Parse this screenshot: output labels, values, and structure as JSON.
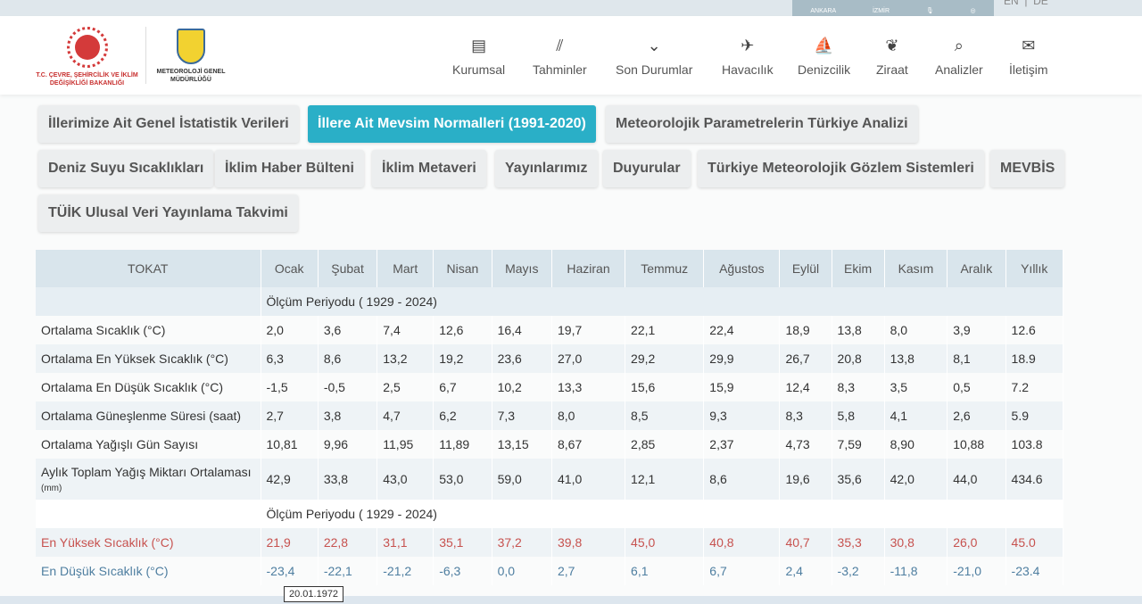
{
  "topbar": {
    "cities": [
      "ANKARA",
      "İZMİR"
    ],
    "languages": [
      "EN",
      "DE"
    ]
  },
  "logos": {
    "ministry": "T.C. ÇEVRE, ŞEHİRCİLİK VE İKLİM DEĞİŞİKLİĞİ BAKANLIĞI",
    "mgm": "METEOROLOJİ GENEL MÜDÜRLÜĞÜ"
  },
  "nav": [
    {
      "label": "Kurumsal",
      "icon": "book-icon"
    },
    {
      "label": "Tahminler",
      "icon": "chart-icon"
    },
    {
      "label": "Son Durumlar",
      "icon": "chevron-circle-icon"
    },
    {
      "label": "Havacılık",
      "icon": "plane-icon"
    },
    {
      "label": "Denizcilik",
      "icon": "sailboat-icon"
    },
    {
      "label": "Ziraat",
      "icon": "wheat-icon"
    },
    {
      "label": "Analizler",
      "icon": "analysis-icon"
    },
    {
      "label": "İletişim",
      "icon": "envelope-icon"
    }
  ],
  "buttons": [
    "İllerimize Ait Genel İstatistik Verileri",
    "İllere Ait Mevsim Normalleri (1991-2020)",
    "Meteorolojik Parametrelerin Türkiye Analizi",
    "Deniz Suyu Sıcaklıkları",
    "İklim Haber Bülteni",
    "İklim Metaveri",
    "Yayınlarımız",
    "Duyurular",
    "Türkiye Meteorolojik Gözlem Sistemleri",
    "MEVBİS",
    "TÜİK Ulusal Veri Yayınlama Takvimi"
  ],
  "active_button": "İllere Ait Mevsim Normalleri (1991-2020)",
  "table": {
    "city": "TOKAT",
    "columns": [
      "Ocak",
      "Şubat",
      "Mart",
      "Nisan",
      "Mayıs",
      "Haziran",
      "Temmuz",
      "Ağustos",
      "Eylül",
      "Ekim",
      "Kasım",
      "Aralık",
      "Yıllık"
    ],
    "period1": "Ölçüm Periyodu ( 1929 - 2024)",
    "rows": [
      {
        "label": "Ortalama Sıcaklık (°C)",
        "values": [
          "2,0",
          "3,6",
          "7,4",
          "12,6",
          "16,4",
          "19,7",
          "22,1",
          "22,4",
          "18,9",
          "13,8",
          "8,0",
          "3,9",
          "12.6"
        ]
      },
      {
        "label": "Ortalama En Yüksek Sıcaklık (°C)",
        "values": [
          "6,3",
          "8,6",
          "13,2",
          "19,2",
          "23,6",
          "27,0",
          "29,2",
          "29,9",
          "26,7",
          "20,8",
          "13,8",
          "8,1",
          "18.9"
        ]
      },
      {
        "label": "Ortalama En Düşük Sıcaklık (°C)",
        "values": [
          "-1,5",
          "-0,5",
          "2,5",
          "6,7",
          "10,2",
          "13,3",
          "15,6",
          "15,9",
          "12,4",
          "8,3",
          "3,5",
          "0,5",
          "7.2"
        ]
      },
      {
        "label": "Ortalama Güneşlenme Süresi (saat)",
        "values": [
          "2,7",
          "3,8",
          "4,7",
          "6,2",
          "7,3",
          "8,0",
          "8,5",
          "9,3",
          "8,3",
          "5,8",
          "4,1",
          "2,6",
          "5.9"
        ]
      },
      {
        "label": "Ortalama Yağışlı Gün Sayısı",
        "values": [
          "10,81",
          "9,96",
          "11,95",
          "11,89",
          "13,15",
          "8,67",
          "2,85",
          "2,37",
          "4,73",
          "7,59",
          "8,90",
          "10,88",
          "103.8"
        ]
      },
      {
        "label": "Aylık Toplam Yağış Miktarı Ortalaması",
        "unit": "(mm)",
        "values": [
          "42,9",
          "33,8",
          "43,0",
          "53,0",
          "59,0",
          "41,0",
          "12,1",
          "8,6",
          "19,6",
          "35,6",
          "42,0",
          "44,0",
          "434.6"
        ]
      }
    ],
    "period2": "Ölçüm Periyodu ( 1929 - 2024)",
    "extremes": [
      {
        "label": "En Yüksek Sıcaklık (°C)",
        "color": "#c7524f",
        "values": [
          "21,9",
          "22,8",
          "31,1",
          "35,1",
          "37,2",
          "39,8",
          "45,0",
          "40,8",
          "40,7",
          "35,3",
          "30,8",
          "26,0",
          "45.0"
        ]
      },
      {
        "label": "En Düşük Sıcaklık (°C)",
        "color": "#4e7ea0",
        "values": [
          "-23,4",
          "-22,1",
          "-21,2",
          "-6,3",
          "0,0",
          "2,7",
          "6,1",
          "6,7",
          "2,4",
          "-3,2",
          "-11,8",
          "-21,0",
          "-23.4"
        ]
      }
    ]
  },
  "tooltip": "20.01.1972"
}
